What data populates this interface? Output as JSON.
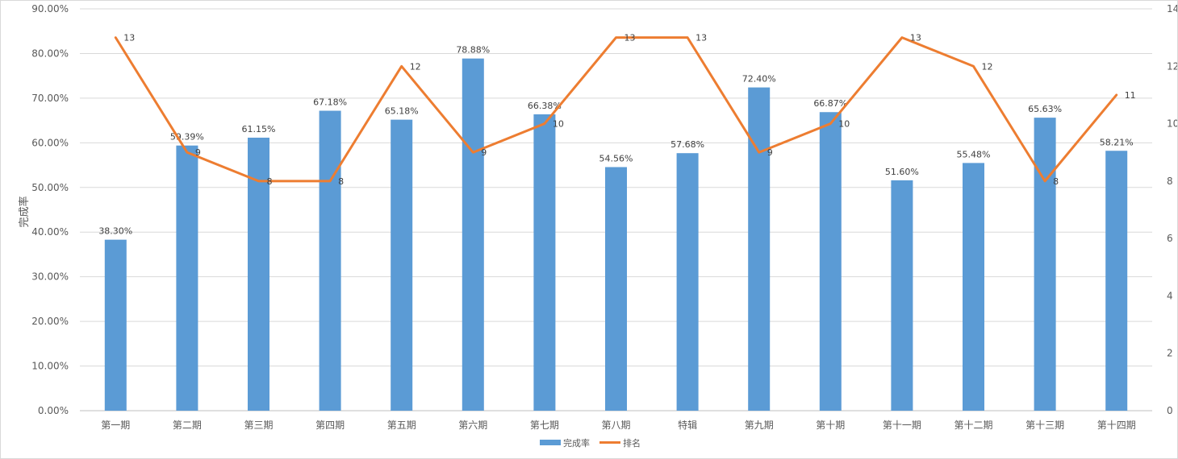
{
  "chart_data": {
    "type": "bar+line",
    "title": "",
    "categories": [
      "第一期",
      "第二期",
      "第三期",
      "第四期",
      "第五期",
      "第六期",
      "第七期",
      "第八期",
      "特辑",
      "第九期",
      "第十期",
      "第十一期",
      "第十二期",
      "第十三期",
      "第十四期"
    ],
    "series": [
      {
        "name": "完成率",
        "type": "bar",
        "axis": "left",
        "color": "#5b9bd5",
        "values": [
          38.3,
          59.39,
          61.15,
          67.18,
          65.18,
          78.88,
          66.38,
          54.56,
          57.68,
          72.4,
          66.87,
          51.6,
          55.48,
          65.63,
          58.21
        ],
        "labels": [
          "38.30%",
          "59.39%",
          "61.15%",
          "67.18%",
          "65.18%",
          "78.88%",
          "66.38%",
          "54.56%",
          "57.68%",
          "72.40%",
          "66.87%",
          "51.60%",
          "55.48%",
          "65.63%",
          "58.21%"
        ]
      },
      {
        "name": "排名",
        "type": "line",
        "axis": "right",
        "color": "#ed7d31",
        "values": [
          13,
          9,
          8,
          8,
          12,
          9,
          10,
          13,
          13,
          9,
          10,
          13,
          12,
          8,
          11
        ],
        "labels": [
          "13",
          "9",
          "8",
          "8",
          "12",
          "9",
          "10",
          "13",
          "13",
          "9",
          "10",
          "13",
          "12",
          "8",
          "11"
        ]
      }
    ],
    "ylabel": "完成率",
    "y_left": {
      "range": [
        0,
        90
      ],
      "ticks": [
        0,
        10,
        20,
        30,
        40,
        50,
        60,
        70,
        80,
        90
      ],
      "tick_labels": [
        "0.00%",
        "10.00%",
        "20.00%",
        "30.00%",
        "40.00%",
        "50.00%",
        "60.00%",
        "70.00%",
        "80.00%",
        "90.00%"
      ]
    },
    "y_right": {
      "range": [
        0,
        14
      ],
      "ticks": [
        0,
        2,
        4,
        6,
        8,
        10,
        12,
        14
      ],
      "tick_labels": [
        "0",
        "2",
        "4",
        "6",
        "8",
        "10",
        "12",
        "14"
      ]
    },
    "grid": true,
    "legend": "bottom-center"
  }
}
